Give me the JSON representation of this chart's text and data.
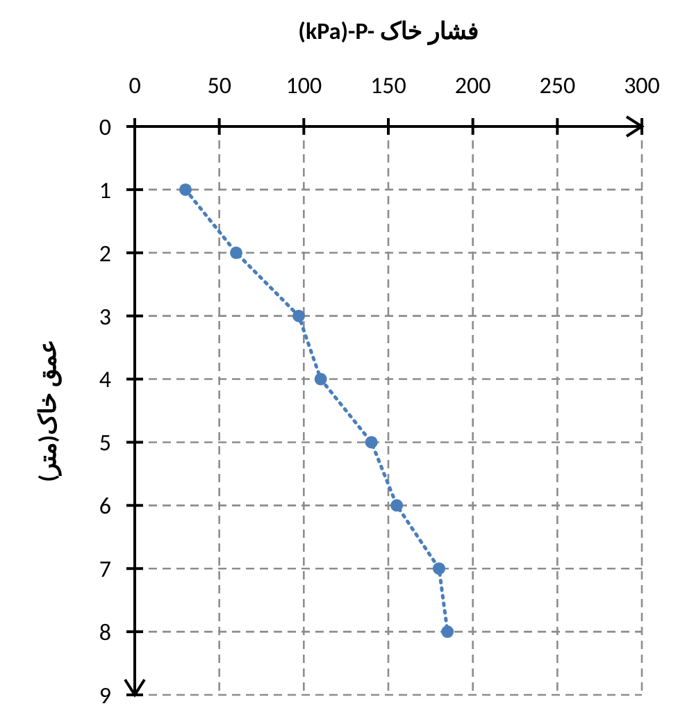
{
  "chart_data": {
    "type": "line",
    "title": "(kPa)-P- فشار خاک",
    "ylabel": "عمق خاک(متر)",
    "x": [
      30,
      60,
      97,
      110,
      140,
      155,
      180,
      185
    ],
    "series": [
      {
        "color": "#4a7ebb",
        "values": [
          1,
          2,
          3,
          4,
          5,
          6,
          7,
          8
        ]
      }
    ],
    "xlim": [
      0,
      300
    ],
    "xticks": [
      0,
      50,
      100,
      150,
      200,
      250,
      300
    ],
    "ylim": [
      9,
      0
    ],
    "yticks": [
      0,
      1,
      2,
      3,
      4,
      5,
      6,
      7,
      8,
      9
    ],
    "grid": true,
    "marker": "circle",
    "line_style": "dotted"
  }
}
